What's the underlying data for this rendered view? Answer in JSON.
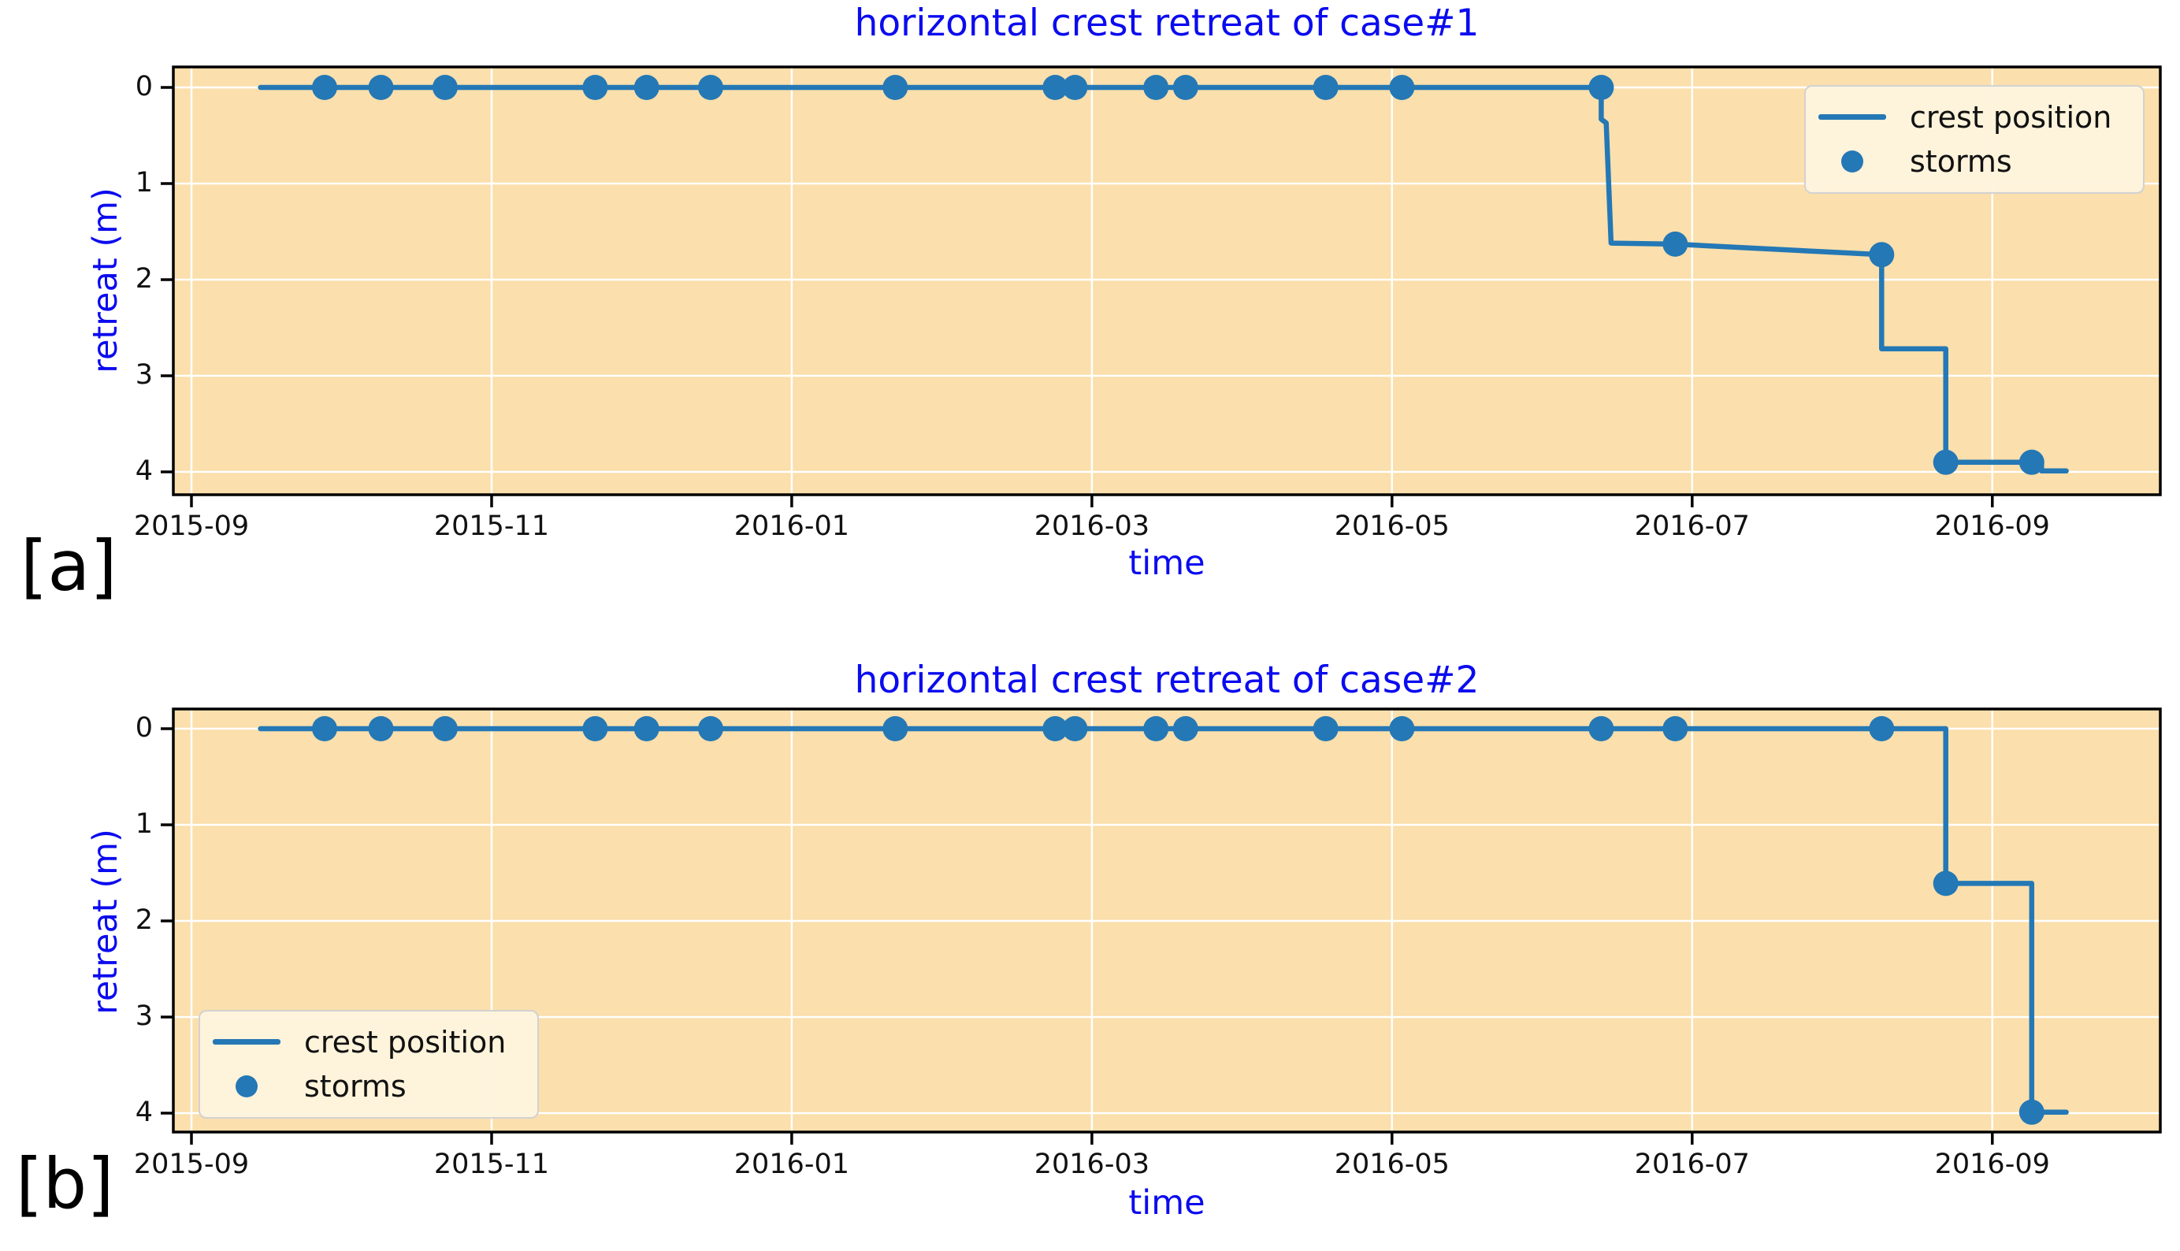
{
  "colors": {
    "line": "#2478b5",
    "marker": "#2478b5",
    "title_text": "#0b0bef",
    "axis_label_text": "#0b0bef",
    "tick_text": "#111111",
    "plot_background": "#fbdfac",
    "grid": "#ffffff",
    "spine": "#000000",
    "legend_background": "#fdf4df",
    "legend_border": "#d2d2d2",
    "panel_label_text": "#000000"
  },
  "chart_data": [
    {
      "type": "line",
      "title": "horizontal crest retreat of case#1",
      "panel_label": "[a]",
      "xlabel": "time",
      "ylabel": "retreat (m)",
      "grid": true,
      "legend": {
        "position": "upper right",
        "entries": [
          "crest position",
          "storms"
        ]
      },
      "x_axis": {
        "ticks": [
          "2015-09",
          "2015-11",
          "2016-01",
          "2016-03",
          "2016-05",
          "2016-07",
          "2016-09"
        ],
        "range": [
          "2015-08-28",
          "2016-10-04"
        ]
      },
      "y_axis": {
        "ticks": [
          0,
          1,
          2,
          3,
          4
        ],
        "range": [
          -0.21,
          4.24
        ],
        "inverted": true
      },
      "series": [
        {
          "name": "crest position",
          "type": "step-line",
          "points": [
            [
              "2015-09-15",
              0.0
            ],
            [
              "2016-06-13",
              0.0
            ],
            [
              "2016-06-13",
              0.33
            ],
            [
              "2016-06-14",
              0.37
            ],
            [
              "2016-06-15",
              1.62
            ],
            [
              "2016-06-28",
              1.63
            ],
            [
              "2016-08-09",
              1.74
            ],
            [
              "2016-08-09",
              2.72
            ],
            [
              "2016-08-22",
              2.72
            ],
            [
              "2016-08-22",
              3.9
            ],
            [
              "2016-09-09",
              3.9
            ],
            [
              "2016-09-11",
              3.9
            ],
            [
              "2016-09-11",
              3.99
            ],
            [
              "2016-09-16",
              3.99
            ]
          ]
        },
        {
          "name": "storms",
          "type": "scatter",
          "points": [
            [
              "2015-09-28",
              0
            ],
            [
              "2015-10-09",
              0
            ],
            [
              "2015-10-22",
              0
            ],
            [
              "2015-11-22",
              0
            ],
            [
              "2015-12-02",
              0
            ],
            [
              "2015-12-15",
              0
            ],
            [
              "2016-01-22",
              0
            ],
            [
              "2016-02-24",
              0
            ],
            [
              "2016-02-28",
              0
            ],
            [
              "2016-03-14",
              0
            ],
            [
              "2016-03-20",
              0
            ],
            [
              "2016-04-18",
              0
            ],
            [
              "2016-05-03",
              0
            ],
            [
              "2016-06-13",
              0
            ],
            [
              "2016-06-28",
              1.63
            ],
            [
              "2016-08-09",
              1.74
            ],
            [
              "2016-08-22",
              3.9
            ],
            [
              "2016-09-09",
              3.9
            ]
          ]
        }
      ]
    },
    {
      "type": "line",
      "title": "horizontal crest retreat of case#2",
      "panel_label": "[b]",
      "xlabel": "time",
      "ylabel": "retreat (m)",
      "grid": true,
      "legend": {
        "position": "lower left",
        "entries": [
          "crest position",
          "storms"
        ]
      },
      "x_axis": {
        "ticks": [
          "2015-09",
          "2015-11",
          "2016-01",
          "2016-03",
          "2016-05",
          "2016-07",
          "2016-09"
        ],
        "range": [
          "2015-08-28",
          "2016-10-04"
        ]
      },
      "y_axis": {
        "ticks": [
          0,
          1,
          2,
          3,
          4
        ],
        "range": [
          -0.2,
          4.2
        ],
        "inverted": true
      },
      "series": [
        {
          "name": "crest position",
          "type": "step-line",
          "points": [
            [
              "2015-09-15",
              0.0
            ],
            [
              "2016-08-22",
              0.0
            ],
            [
              "2016-08-22",
              1.61
            ],
            [
              "2016-09-09",
              1.61
            ],
            [
              "2016-09-09",
              3.99
            ],
            [
              "2016-09-16",
              3.99
            ]
          ]
        },
        {
          "name": "storms",
          "type": "scatter",
          "points": [
            [
              "2015-09-28",
              0
            ],
            [
              "2015-10-09",
              0
            ],
            [
              "2015-10-22",
              0
            ],
            [
              "2015-11-22",
              0
            ],
            [
              "2015-12-02",
              0
            ],
            [
              "2015-12-15",
              0
            ],
            [
              "2016-01-22",
              0
            ],
            [
              "2016-02-24",
              0
            ],
            [
              "2016-02-28",
              0
            ],
            [
              "2016-03-14",
              0
            ],
            [
              "2016-03-20",
              0
            ],
            [
              "2016-04-18",
              0
            ],
            [
              "2016-05-03",
              0
            ],
            [
              "2016-06-13",
              0
            ],
            [
              "2016-06-28",
              0
            ],
            [
              "2016-08-09",
              0
            ],
            [
              "2016-08-22",
              1.61
            ],
            [
              "2016-09-09",
              3.99
            ]
          ]
        }
      ]
    }
  ]
}
